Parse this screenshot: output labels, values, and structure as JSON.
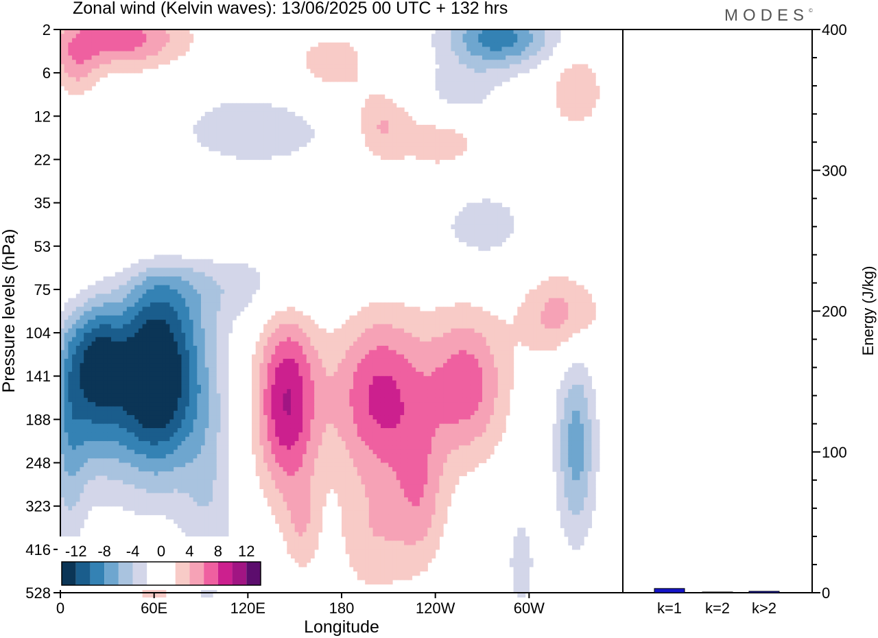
{
  "header": {
    "title": "Zonal wind (Kelvin waves):  13/06/2025  00 UTC  + 132 hrs",
    "brand": "MODES"
  },
  "colors": {
    "neg": [
      "#0b3556",
      "#1a5d8c",
      "#3482b4",
      "#6ea6cf",
      "#a9c3df",
      "#d3d6e9"
    ],
    "white": "#ffffff",
    "pos": [
      "#f8cbc7",
      "#f6a2b6",
      "#ef60a0",
      "#cc208e",
      "#a11583",
      "#5c0d6d"
    ],
    "bar": "#1515c8"
  },
  "chart_data": [
    {
      "type": "heatmap",
      "title": "Zonal wind (Kelvin waves):  13/06/2025  00 UTC  + 132 hrs",
      "xlabel": "Longitude",
      "ylabel": "Pressure levels (hPa)",
      "x_ticks": [
        "0",
        "60E",
        "120E",
        "180",
        "120W",
        "60W"
      ],
      "y_ticks": [
        "2",
        "6",
        "12",
        "22",
        "35",
        "53",
        "75",
        "104",
        "141",
        "188",
        "248",
        "323",
        "416",
        "528"
      ],
      "colorbar": {
        "labels": [
          "-12",
          "-8",
          "-4",
          "0",
          "4",
          "8",
          "12"
        ],
        "levels": [
          -14,
          -12,
          -10,
          -8,
          -6,
          -4,
          -2,
          2,
          4,
          6,
          8,
          10,
          12,
          14
        ]
      },
      "features": [
        {
          "lon": 60,
          "lev": 8.0,
          "amp": -16,
          "sx": 22,
          "sy": 1.6
        },
        {
          "lon": 22,
          "lev": 7.6,
          "amp": -10,
          "sx": 12,
          "sy": 1.6
        },
        {
          "lon": 5,
          "lev": 9.0,
          "amp": -6,
          "sx": 8,
          "sy": 2.0
        },
        {
          "lon": 110,
          "lev": 5.8,
          "amp": -3.2,
          "sx": 50,
          "sy": 0.7
        },
        {
          "lon": 95,
          "lev": 11.0,
          "amp": -3.2,
          "sx": 12,
          "sy": 2.2
        },
        {
          "lon": 330,
          "lev": 9.6,
          "amp": -7,
          "sx": 9,
          "sy": 1.5
        },
        {
          "lon": 295,
          "lev": 12.3,
          "amp": -3,
          "sx": 7,
          "sy": 0.9
        },
        {
          "lon": 145,
          "lev": 8.6,
          "amp": 10,
          "sx": 14,
          "sy": 1.5
        },
        {
          "lon": 205,
          "lev": 8.5,
          "amp": 8.5,
          "sx": 22,
          "sy": 1.4
        },
        {
          "lon": 260,
          "lev": 8.2,
          "amp": 7,
          "sx": 18,
          "sy": 1.2
        },
        {
          "lon": 320,
          "lev": 6.6,
          "amp": 5,
          "sx": 18,
          "sy": 0.7
        },
        {
          "lon": 230,
          "lev": 10.8,
          "amp": 4.5,
          "sx": 12,
          "sy": 1.2
        },
        {
          "lon": 200,
          "lev": 11.8,
          "amp": 3.2,
          "sx": 16,
          "sy": 1.0
        },
        {
          "lon": 155,
          "lev": 11.5,
          "amp": 3,
          "sx": 8,
          "sy": 0.8
        },
        {
          "lon": 60,
          "lev": 12.9,
          "amp": 3,
          "sx": 9,
          "sy": 0.7
        },
        {
          "lon": 20,
          "lev": 6.0,
          "amp": 5.5,
          "sx": 18,
          "sy": 0.7
        },
        {
          "lon": 60,
          "lev": 5.0,
          "amp": 3.2,
          "sx": 40,
          "sy": 0.5
        },
        {
          "lon": 40,
          "lev": 0.2,
          "amp": 7,
          "sx": 28,
          "sy": 0.5
        },
        {
          "lon": 10,
          "lev": 0.8,
          "amp": 4,
          "sx": 10,
          "sy": 0.6
        },
        {
          "lon": 185,
          "lev": 0.8,
          "amp": 3.5,
          "sx": 30,
          "sy": 0.6
        },
        {
          "lon": 205,
          "lev": 2.2,
          "amp": 4,
          "sx": 12,
          "sy": 0.6
        },
        {
          "lon": 245,
          "lev": 2.5,
          "amp": 3.2,
          "sx": 22,
          "sy": 0.7
        },
        {
          "lon": 330,
          "lev": 1.4,
          "amp": 4,
          "sx": 12,
          "sy": 0.6
        },
        {
          "lon": 280,
          "lev": 0.2,
          "amp": -9,
          "sx": 24,
          "sy": 0.5
        },
        {
          "lon": 255,
          "lev": 1.5,
          "amp": -4,
          "sx": 18,
          "sy": 0.5
        },
        {
          "lon": 210,
          "lev": 0.8,
          "amp": -3,
          "sx": 16,
          "sy": 0.6
        },
        {
          "lon": 125,
          "lev": 2.3,
          "amp": -3.2,
          "sx": 40,
          "sy": 0.7
        },
        {
          "lon": 270,
          "lev": 4.5,
          "amp": -2.8,
          "sx": 25,
          "sy": 0.8
        }
      ]
    },
    {
      "type": "bar",
      "ylabel": "Energy (J/kg)",
      "categories": [
        "k=1",
        "k=2",
        "k>2"
      ],
      "values": [
        3,
        0.5,
        1
      ],
      "ylim": [
        0,
        400
      ],
      "y_ticks": [
        "0",
        "100",
        "200",
        "300",
        "400"
      ]
    }
  ]
}
